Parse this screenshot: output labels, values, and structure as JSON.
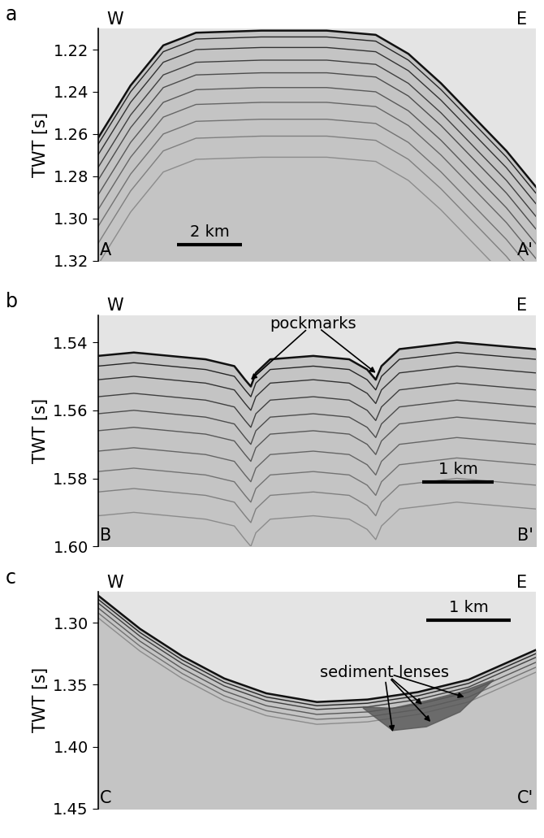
{
  "chart_data": [
    {
      "type": "profile",
      "panel": "a",
      "west": "W",
      "east": "E",
      "profile_start": "A",
      "profile_end": "A'",
      "y_label": "TWT [s]",
      "xlim": [
        0,
        13.4
      ],
      "ylim": [
        1.32,
        1.21
      ],
      "yticks": [
        1.22,
        1.24,
        1.26,
        1.28,
        {
          "value": 1.3,
          "label": "1.30"
        },
        1.32
      ],
      "tick_labels": "y",
      "scale_bar": {
        "length": 2,
        "label": "2 km"
      },
      "seafloor": {
        "x": [
          0,
          1,
          2,
          3,
          5,
          7,
          8.5,
          9.5,
          10.5,
          11.5,
          12.5,
          13.4
        ],
        "twt": [
          1.262,
          1.237,
          1.218,
          1.212,
          1.211,
          1.211,
          1.213,
          1.222,
          1.236,
          1.252,
          1.268,
          1.285
        ]
      },
      "reflectors": [
        0.003,
        0.008,
        0.014,
        0.02,
        0.027,
        0.034,
        0.042,
        0.05,
        0.06
      ],
      "annotations": []
    },
    {
      "type": "profile",
      "panel": "b",
      "west": "W",
      "east": "E",
      "profile_start": "B",
      "profile_end": "B'",
      "y_label": "TWT [s]",
      "xlim": [
        0,
        6.1
      ],
      "ylim": [
        1.6,
        1.532
      ],
      "yticks": [
        1.54,
        1.56,
        1.58,
        {
          "value": 1.6,
          "label": "1.60"
        }
      ],
      "tick_labels": "y",
      "scale_bar": {
        "length": 1,
        "label": "1 km"
      },
      "seafloor": {
        "x": [
          0,
          0.5,
          1,
          1.5,
          1.9,
          2.05,
          2.13,
          2.2,
          2.4,
          3,
          3.5,
          3.75,
          3.87,
          3.95,
          4.2,
          5,
          6.1
        ],
        "twt": [
          1.544,
          1.543,
          1.544,
          1.545,
          1.547,
          1.551,
          1.553,
          1.549,
          1.545,
          1.544,
          1.545,
          1.548,
          1.551,
          1.547,
          1.542,
          1.54,
          1.542
        ]
      },
      "reflectors": [
        0.003,
        0.007,
        0.012,
        0.017,
        0.022,
        0.028,
        0.034,
        0.04,
        0.047
      ],
      "annotations": [
        {
          "text": "pockmarks",
          "x": 3.0,
          "y": 1.5345,
          "targets": [
            [
              2.13,
              1.551
            ],
            [
              3.87,
              1.549
            ]
          ]
        }
      ]
    },
    {
      "type": "profile",
      "panel": "c",
      "west": "W",
      "east": "E",
      "profile_start": "C",
      "profile_end": "C'",
      "y_label": "TWT [s]",
      "xlim": [
        0,
        5.2
      ],
      "ylim": [
        1.45,
        1.275
      ],
      "yticks": [
        {
          "value": 1.3,
          "label": "1.30"
        },
        1.35,
        {
          "value": 1.4,
          "label": "1.40"
        },
        1.45
      ],
      "tick_labels": "y",
      "scale_bar": {
        "length": 1,
        "label": "1 km"
      },
      "seafloor": {
        "x": [
          0,
          0.5,
          1,
          1.5,
          2,
          2.6,
          3.2,
          3.8,
          4.4,
          5.2
        ],
        "twt": [
          1.278,
          1.305,
          1.327,
          1.345,
          1.357,
          1.364,
          1.362,
          1.356,
          1.346,
          1.322
        ]
      },
      "reflectors": [
        0.003,
        0.006,
        0.01,
        0.014,
        0.018
      ],
      "sediment_lens": {
        "x": [
          3.15,
          3.5,
          3.9,
          4.3,
          4.7
        ],
        "top": [
          1.368,
          1.369,
          1.363,
          1.356,
          1.346
        ],
        "bottom": [
          1.369,
          1.387,
          1.384,
          1.372,
          1.346
        ]
      },
      "annotations": [
        {
          "text": "sediment lenses",
          "x": 3.4,
          "y": 1.34,
          "targets": [
            [
              3.5,
              1.388
            ],
            [
              3.95,
              1.38
            ],
            [
              3.85,
              1.366
            ],
            [
              4.35,
              1.36
            ]
          ]
        }
      ]
    }
  ]
}
